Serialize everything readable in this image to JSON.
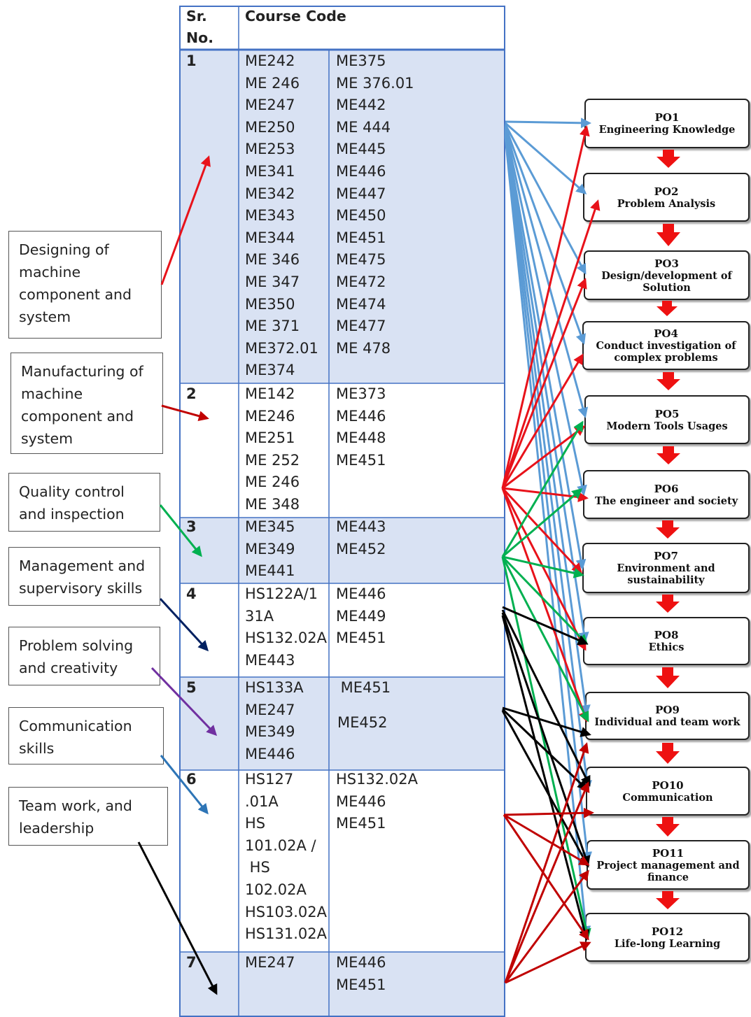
{
  "table": {
    "header": {
      "sr": "Sr. No.",
      "course": "Course Code"
    },
    "rows": [
      {
        "sr": "1",
        "col1": [
          "ME242",
          "ME 246",
          "ME247",
          "ME250",
          "ME253",
          "ME341",
          "ME342",
          "ME343",
          "ME344",
          "ME 346",
          "ME 347",
          "ME350",
          "ME 371",
          "ME372.01",
          "ME374"
        ],
        "col2": [
          "ME375",
          "ME 376.01",
          "ME442",
          "ME 444",
          "ME445",
          "ME446",
          "ME447",
          "ME450",
          "ME451",
          "ME475",
          "ME472",
          "ME474",
          "ME477",
          "ME 478"
        ]
      },
      {
        "sr": "2",
        "col1": [
          "ME142",
          "ME246",
          "ME251",
          "ME 252",
          "ME 246",
          "ME 348"
        ],
        "col2": [
          "ME373",
          "ME446",
          "ME448",
          "ME451"
        ]
      },
      {
        "sr": "3",
        "col1": [
          "ME345",
          "ME349",
          "ME441"
        ],
        "col2": [
          "ME443",
          "ME452"
        ]
      },
      {
        "sr": "4",
        "col1": [
          "HS122A/1",
          "31A",
          "HS132.02A",
          "ME443"
        ],
        "col2": [
          "ME446",
          "ME449",
          "ME451"
        ]
      },
      {
        "sr": "5",
        "col1": [
          "HS133A",
          "ME247",
          "ME349",
          "ME446"
        ],
        "col2": [
          " ME451",
          "",
          "ME452"
        ]
      },
      {
        "sr": "6",
        "col1": [
          "HS127",
          ".01A",
          "HS",
          "101.02A /",
          " HS",
          "102.02A",
          "HS103.02A",
          "HS131.02A"
        ],
        "col2": [
          "HS132.02A",
          "ME446",
          "ME451"
        ]
      },
      {
        "sr": "7",
        "col1": [
          "ME247"
        ],
        "col2": [
          "ME446",
          "ME451"
        ]
      }
    ]
  },
  "skills": [
    "Designing of machine component and system",
    "Manufacturing of machine component and system",
    "Quality control and inspection",
    "Management and supervisory skills",
    "Problem solving and creativity",
    "Communication skills",
    "Team work, and leadership"
  ],
  "outcomes": [
    {
      "code": "PO1",
      "name": "Engineering Knowledge"
    },
    {
      "code": "PO2",
      "name": "Problem Analysis"
    },
    {
      "code": "PO3",
      "name": "Design/development of Solution"
    },
    {
      "code": "PO4",
      "name": "Conduct investigation of complex problems"
    },
    {
      "code": "PO5",
      "name": "Modern Tools Usages"
    },
    {
      "code": "PO6",
      "name": "The engineer and society"
    },
    {
      "code": "PO7",
      "name": "Environment and sustainability"
    },
    {
      "code": "PO8",
      "name": "Ethics"
    },
    {
      "code": "PO9",
      "name": "Individual and team work"
    },
    {
      "code": "PO10",
      "name": "Communication"
    },
    {
      "code": "PO11",
      "name": "Project management and finance"
    },
    {
      "code": "PO12",
      "name": "Life-long Learning"
    }
  ],
  "colors": {
    "row_fill": "#d9e2f3",
    "table_border": "#4472c4",
    "design": "#e8121a",
    "manufacturing": "#c00000",
    "quality": "#00b050",
    "management": "#002060",
    "problem_solving": "#7030a0",
    "communication": "#2e75b6",
    "team": "#000000",
    "po1_links": "#5b9bd5",
    "flow_arrow": "#ee1111"
  }
}
